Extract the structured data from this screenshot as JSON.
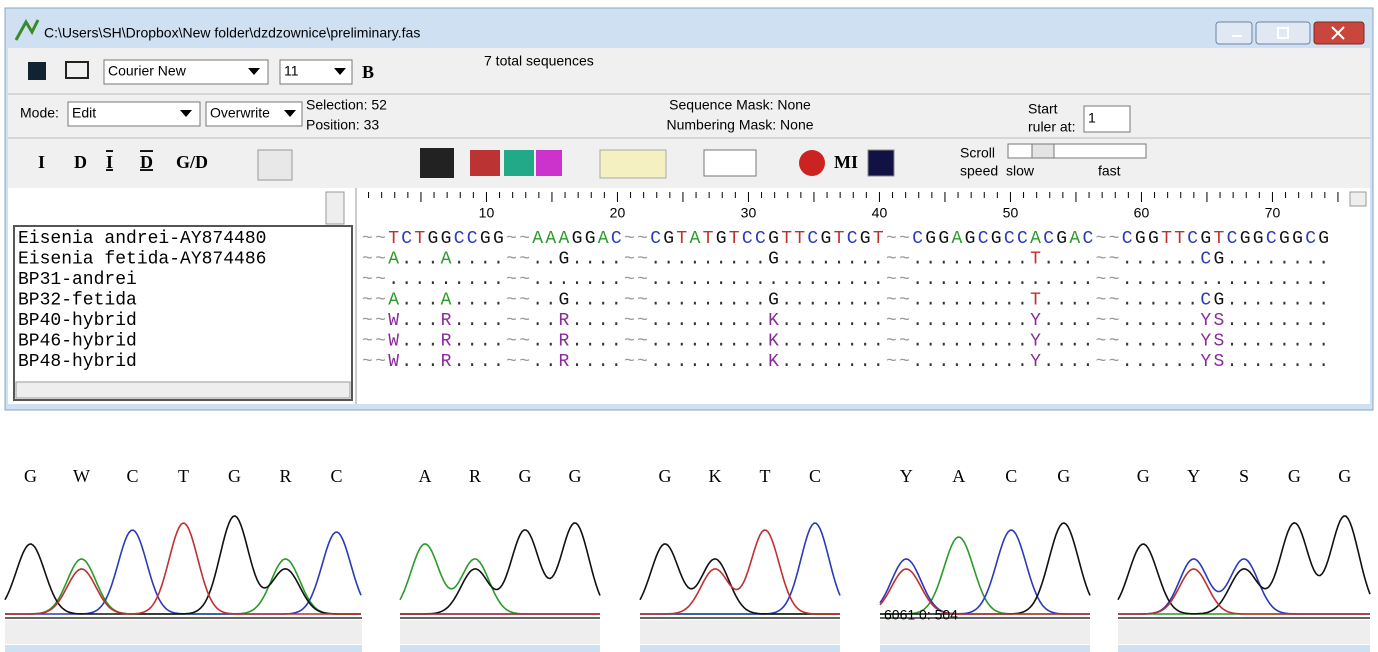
{
  "window": {
    "title": "C:\\Users\\SH\\Dropbox\\New folder\\dzdzownice\\preliminary.fas",
    "toolbar": {
      "font": "Courier New",
      "size": "11",
      "bold": "B",
      "status": "7 total sequences"
    },
    "mode_bar": {
      "mode_label": "Mode:",
      "mode": "Edit",
      "overwrite": "Overwrite",
      "selection": "Selection: 52",
      "position": "Position:  33",
      "sequence_mask": "Sequence Mask: None",
      "numbering_mask": "Numbering Mask: None",
      "start_label": "Start",
      "ruler_label": "ruler at:",
      "ruler_start": "1"
    },
    "tools": [
      "I",
      "D",
      "I",
      "D",
      "G/D",
      "MI"
    ],
    "scroll": {
      "label": "Scroll",
      "speed": "speed",
      "slow": "slow",
      "fast": "fast"
    }
  },
  "alignment": {
    "ruler": [
      10,
      20,
      30,
      40,
      50,
      60,
      70
    ],
    "sequences": [
      {
        "name": "Eisenia andrei-AY874480",
        "sequence": "~~TCTGGCCGG~~AAAGGAC~~CGTATGTCCGTTCGTCGT~~CGGAGCGCCACGAC~~CGGTTCGTCGGCGGCG"
      },
      {
        "name": "Eisenia fetida-AY874486",
        "sequence": "~~A...A....~~..G....~~.........G........~~.........T....~~......CG........"
      },
      {
        "name": "BP31-andrei",
        "sequence": "~~.........~~.......~~..................~~..............~~................"
      },
      {
        "name": "BP32-fetida",
        "sequence": "~~A...A....~~..G....~~.........G........~~.........T....~~......CG........"
      },
      {
        "name": "BP40-hybrid",
        "sequence": "~~W...R....~~..R....~~.........K........~~.........Y....~~......YS........"
      },
      {
        "name": "BP46-hybrid",
        "sequence": "~~W...R....~~..R....~~.........K........~~.........Y....~~......YS........"
      },
      {
        "name": "BP48-hybrid",
        "sequence": "~~W...R....~~..R....~~.........K........~~.........Y....~~......YS........"
      }
    ]
  },
  "chromatograms": [
    {
      "bases": [
        "G",
        "W",
        "C",
        "T",
        "G",
        "R",
        "C"
      ]
    },
    {
      "bases": [
        "A",
        "R",
        "G",
        "G"
      ]
    },
    {
      "bases": [
        "G",
        "K",
        "T",
        "C"
      ]
    },
    {
      "bases": [
        "Y",
        "A",
        "C",
        "G"
      ],
      "overlay": "6061  0: 504"
    },
    {
      "bases": [
        "G",
        "Y",
        "S",
        "G",
        "G"
      ]
    }
  ]
}
